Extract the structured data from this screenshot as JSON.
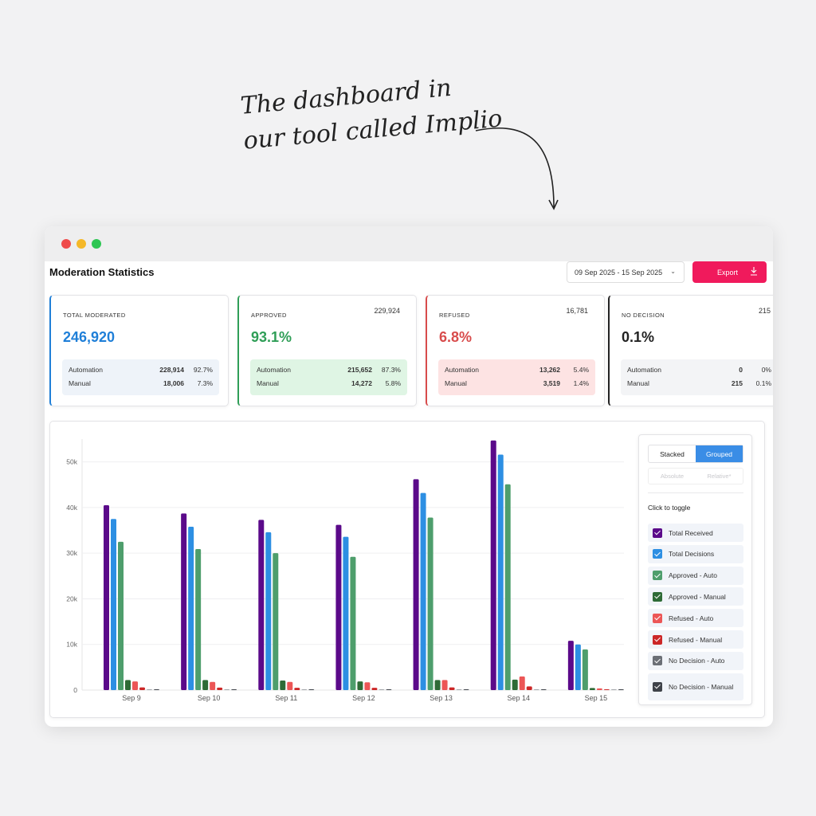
{
  "annotation": {
    "line1": "The dashboard in",
    "line2": "our tool called Implio"
  },
  "header": {
    "title": "Moderation Statistics",
    "date_range": "09 Sep 2025 - 15 Sep 2025",
    "export_label": "Export"
  },
  "cards": [
    {
      "label": "TOTAL MODERATED",
      "count": "",
      "value": "246,920",
      "color": "#1f7fd8",
      "sub_bg": "#eef3f9",
      "rows": [
        {
          "name": "Automation",
          "value": "228,914",
          "pct": "92.7%"
        },
        {
          "name": "Manual",
          "value": "18,006",
          "pct": "7.3%"
        }
      ]
    },
    {
      "label": "APPROVED",
      "count": "229,924",
      "value": "93.1%",
      "color": "#2f9e57",
      "sub_bg": "#dff5e4",
      "rows": [
        {
          "name": "Automation",
          "value": "215,652",
          "pct": "87.3%"
        },
        {
          "name": "Manual",
          "value": "14,272",
          "pct": "5.8%"
        }
      ]
    },
    {
      "label": "REFUSED",
      "count": "16,781",
      "value": "6.8%",
      "color": "#d84c4c",
      "sub_bg": "#fde3e3",
      "rows": [
        {
          "name": "Automation",
          "value": "13,262",
          "pct": "5.4%"
        },
        {
          "name": "Manual",
          "value": "3,519",
          "pct": "1.4%"
        }
      ]
    },
    {
      "label": "NO DECISION",
      "count": "215",
      "value": "0.1%",
      "color": "#222222",
      "sub_bg": "#f3f4f6",
      "rows": [
        {
          "name": "Automation",
          "value": "0",
          "pct": "0%"
        },
        {
          "name": "Manual",
          "value": "215",
          "pct": "0.1%"
        }
      ]
    }
  ],
  "legend": {
    "mode_buttons": [
      "Stacked",
      "Grouped"
    ],
    "active_mode": "Grouped",
    "scale_buttons": [
      "Absolute",
      "Relative*"
    ],
    "toggle_label": "Click to toggle"
  },
  "chart_data": {
    "type": "bar",
    "categories": [
      "Sep 9",
      "Sep 10",
      "Sep 11",
      "Sep 12",
      "Sep 13",
      "Sep 14",
      "Sep 15"
    ],
    "ylim": [
      0,
      55000
    ],
    "yticks": [
      0,
      10000,
      20000,
      30000,
      40000,
      50000
    ],
    "ytick_labels": [
      "0",
      "10k",
      "20k",
      "30k",
      "40k",
      "50k"
    ],
    "grid": true,
    "series": [
      {
        "name": "Total Received",
        "color": "#5b0a8a",
        "values": [
          40500,
          38700,
          37300,
          36200,
          46200,
          54700,
          10800
        ]
      },
      {
        "name": "Total Decisions",
        "color": "#2d8fe3",
        "values": [
          37500,
          35800,
          34600,
          33600,
          43200,
          51600,
          10000
        ]
      },
      {
        "name": "Approved - Auto",
        "color": "#4e9e6c",
        "values": [
          32500,
          30900,
          30000,
          29200,
          37800,
          45100,
          8900
        ]
      },
      {
        "name": "Approved - Manual",
        "color": "#2e6b36",
        "values": [
          2200,
          2200,
          2100,
          1900,
          2200,
          2300,
          450
        ]
      },
      {
        "name": "Refused - Auto",
        "color": "#ec5656",
        "values": [
          1900,
          1800,
          1800,
          1700,
          2200,
          3000,
          380
        ]
      },
      {
        "name": "Refused - Manual",
        "color": "#cc2727",
        "values": [
          600,
          550,
          500,
          500,
          600,
          800,
          130
        ]
      },
      {
        "name": "No Decision - Auto",
        "color": "#6b6f76",
        "values": [
          0,
          0,
          0,
          0,
          0,
          0,
          0
        ]
      },
      {
        "name": "No Decision - Manual",
        "color": "#3e4249",
        "values": [
          40,
          30,
          30,
          30,
          30,
          40,
          10
        ]
      }
    ]
  }
}
